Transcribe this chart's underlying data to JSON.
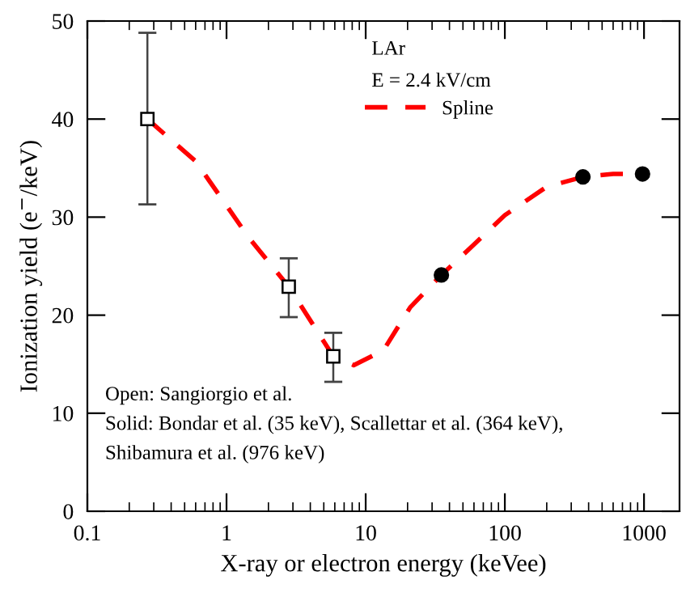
{
  "chart_data": {
    "type": "scatter",
    "xlabel": "X-ray or electron energy (keVee)",
    "ylabel": "Ionization yield (e$^{−}$/keV)",
    "log": "x",
    "xlim": [
      0.1,
      1800
    ],
    "xticks": [
      0.1,
      1,
      10,
      100,
      1000
    ],
    "ylim": [
      0,
      50
    ],
    "yticks": [
      0,
      10,
      20,
      30,
      40,
      50
    ],
    "grid": false,
    "legend": "top right",
    "series": [
      {
        "marker": "square",
        "color": "#000000",
        "x": [
          0.27,
          2.8,
          5.85
        ],
        "values": [
          40,
          22.9,
          15.8
        ],
        "errors": [
          [
            31.3,
            48.8
          ],
          [
            19.8,
            25.8
          ],
          [
            13.2,
            18.2
          ]
        ]
      },
      {
        "marker": "circle",
        "color": "#000000",
        "x": [
          35,
          364,
          976
        ],
        "values": [
          24.1,
          34.1,
          34.4
        ]
      },
      {
        "type": "line",
        "name": "Spline",
        "color": "#ff0000",
        "line_style": "dashed",
        "marker": "none",
        "x": [
          0.27,
          0.6,
          1.43,
          2.8,
          5.85,
          8.2,
          13.4,
          20.9,
          35,
          60,
          100,
          200,
          364,
          600,
          976
        ],
        "values": [
          40,
          35.7,
          28,
          22.9,
          15.8,
          14.9,
          16.4,
          20.8,
          24.1,
          27.2,
          30.2,
          33.1,
          34.1,
          34.4,
          34.4
        ]
      }
    ],
    "annotations": [
      "LAr",
      "E = 2.4 kV/cm",
      "Open: Sangiorgio et al.",
      "Solid: Bondar et al. (35 keV), Scallettar et al. (364 keV),",
      "Shibamura et al. (976 keV)"
    ]
  }
}
